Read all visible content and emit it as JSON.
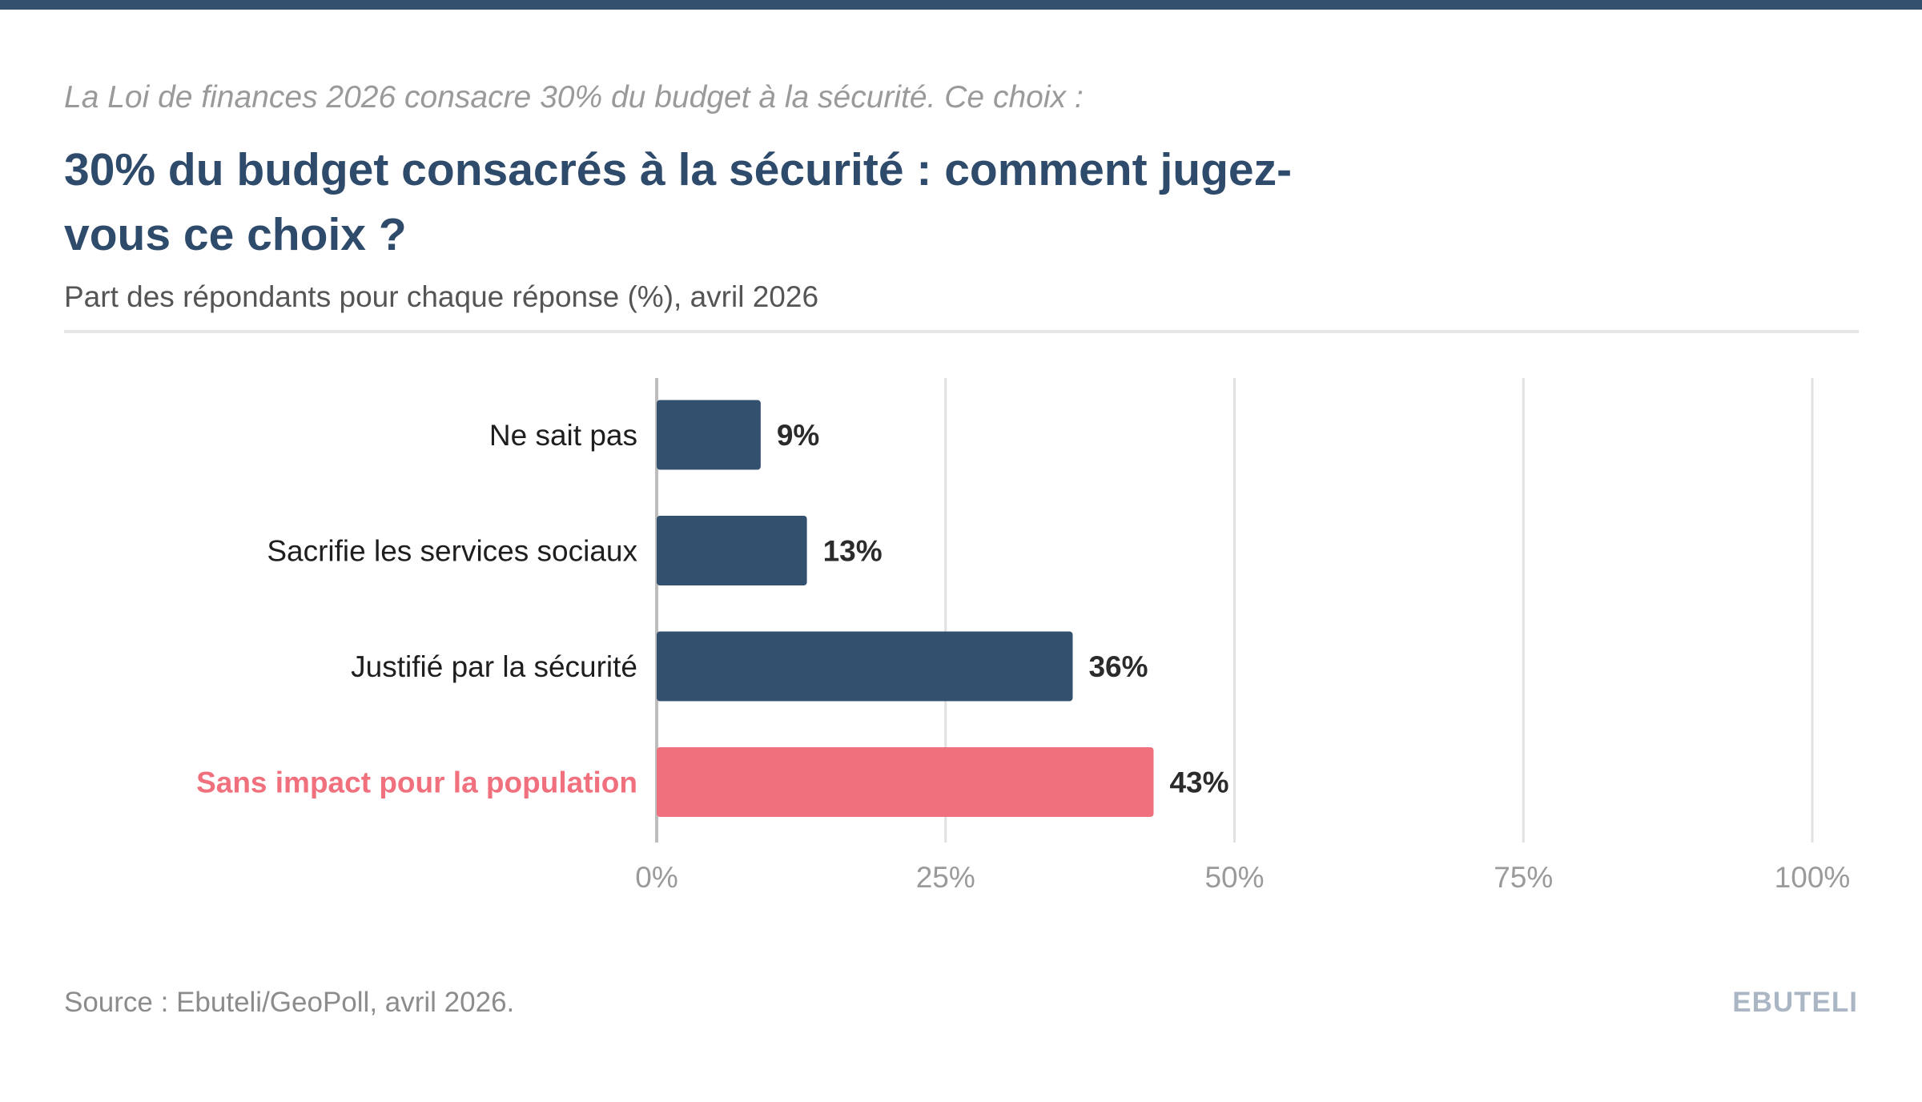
{
  "header": {
    "kicker": "La Loi de finances 2026 consacre 30% du budget à la sécurité. Ce choix :",
    "title": "30% du budget consacrés à la sécurité : comment jugez-vous ce choix ?",
    "subtitle": "Part des répondants pour chaque réponse (%), avril 2026"
  },
  "footer": {
    "source": "Source : Ebuteli/GeoPoll, avril 2026.",
    "brand": "EBUTELI"
  },
  "colors": {
    "bar": "#34506f",
    "highlight": "#f0717d",
    "grid": "#e1e1e1",
    "axis": "#bdbdbd",
    "tick_label": "#9a9a9a",
    "value_label": "#2b2b2b",
    "category_label": "#1e1e1e"
  },
  "chart_data": {
    "type": "bar",
    "orientation": "horizontal",
    "categories": [
      "Ne sait pas",
      "Sacrifie les services sociaux",
      "Justifié par la sécurité",
      "Sans impact pour la population"
    ],
    "values": [
      9,
      13,
      36,
      43
    ],
    "value_labels": [
      "9%",
      "13%",
      "36%",
      "43%"
    ],
    "highlighted_category": "Sans impact pour la population",
    "xlim": [
      0,
      100
    ],
    "xticks": [
      0,
      25,
      50,
      75,
      100
    ],
    "xtick_labels": [
      "0%",
      "25%",
      "50%",
      "75%",
      "100%"
    ],
    "grid": true,
    "legend": "none"
  }
}
